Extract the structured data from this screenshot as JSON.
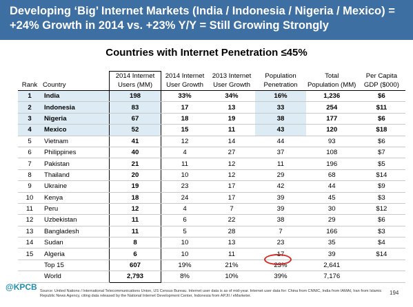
{
  "header": {
    "line1": "Developing ‘Big’ Internet Markets (India / Indonesia / Nigeria / Mexico) =",
    "line2": "+24% Growth in 2014 vs. +23% Y/Y = Still Growing Strongly"
  },
  "subtitle": "Countries with Internet Penetration ≤45%",
  "columns": {
    "rank": "Rank",
    "country": "Country",
    "users": [
      "2014 Internet",
      "Users (MM)"
    ],
    "user_growth": [
      "2014 Internet",
      "User Growth"
    ],
    "growth_2013": [
      "2013 Internet",
      "User Growth"
    ],
    "penetration": [
      "Population",
      "Penetration"
    ],
    "population": [
      "Total",
      "Population (MM)"
    ],
    "gdp": [
      "Per Capita",
      "GDP ($000)"
    ]
  },
  "rows": [
    {
      "rank": "1",
      "country": "India",
      "users": "198",
      "ug": "33%",
      "g13": "34%",
      "pen": "16%",
      "pop": "1,236",
      "gdp": "$6"
    },
    {
      "rank": "2",
      "country": "Indonesia",
      "users": "83",
      "ug": "17",
      "g13": "13",
      "pen": "33",
      "pop": "254",
      "gdp": "$11"
    },
    {
      "rank": "3",
      "country": "Nigeria",
      "users": "67",
      "ug": "18",
      "g13": "19",
      "pen": "38",
      "pop": "177",
      "gdp": "$6"
    },
    {
      "rank": "4",
      "country": "Mexico",
      "users": "52",
      "ug": "15",
      "g13": "11",
      "pen": "43",
      "pop": "120",
      "gdp": "$18"
    },
    {
      "rank": "5",
      "country": "Vietnam",
      "users": "41",
      "ug": "12",
      "g13": "14",
      "pen": "44",
      "pop": "93",
      "gdp": "$6"
    },
    {
      "rank": "6",
      "country": "Philippines",
      "users": "40",
      "ug": "4",
      "g13": "27",
      "pen": "37",
      "pop": "108",
      "gdp": "$7"
    },
    {
      "rank": "7",
      "country": "Pakistan",
      "users": "21",
      "ug": "11",
      "g13": "12",
      "pen": "11",
      "pop": "196",
      "gdp": "$5"
    },
    {
      "rank": "8",
      "country": "Thailand",
      "users": "20",
      "ug": "10",
      "g13": "12",
      "pen": "29",
      "pop": "68",
      "gdp": "$14"
    },
    {
      "rank": "9",
      "country": "Ukraine",
      "users": "19",
      "ug": "23",
      "g13": "17",
      "pen": "42",
      "pop": "44",
      "gdp": "$9"
    },
    {
      "rank": "10",
      "country": "Kenya",
      "users": "18",
      "ug": "24",
      "g13": "17",
      "pen": "39",
      "pop": "45",
      "gdp": "$3"
    },
    {
      "rank": "11",
      "country": "Peru",
      "users": "12",
      "ug": "4",
      "g13": "7",
      "pen": "39",
      "pop": "30",
      "gdp": "$12"
    },
    {
      "rank": "12",
      "country": "Uzbekistan",
      "users": "11",
      "ug": "6",
      "g13": "22",
      "pen": "38",
      "pop": "29",
      "gdp": "$6"
    },
    {
      "rank": "13",
      "country": "Bangladesh",
      "users": "11",
      "ug": "5",
      "g13": "28",
      "pen": "7",
      "pop": "166",
      "gdp": "$3"
    },
    {
      "rank": "14",
      "country": "Sudan",
      "users": "8",
      "ug": "10",
      "g13": "13",
      "pen": "23",
      "pop": "35",
      "gdp": "$4"
    },
    {
      "rank": "15",
      "country": "Algeria",
      "users": "6",
      "ug": "10",
      "g13": "11",
      "pen": "17",
      "pop": "39",
      "gdp": "$14"
    }
  ],
  "totals": [
    {
      "label": "Top 15",
      "users": "607",
      "ug": "19%",
      "g13": "21%",
      "pen": "23%",
      "pop": "2,641",
      "gdp": ""
    },
    {
      "label": "World",
      "users": "2,793",
      "ug": "8%",
      "g13": "10%",
      "pen": "39%",
      "pop": "7,176",
      "gdp": ""
    }
  ],
  "highlight": {
    "fill": "#dcebf4",
    "circle": "#d42a25",
    "header_bg": "#3e6fa2"
  },
  "logo": "@KPCB",
  "footer": "Source: United Nations / International Telecommunications Union, US Census Bureau. Internet user data is as of mid-year. Internet user data for: China from CNNIC, India from IAMAI, Iran from Islamic Republic News Agency, citing data released by the National Internet Development Center, Indonesia from APJII / eMarketer.",
  "page_number": "194"
}
